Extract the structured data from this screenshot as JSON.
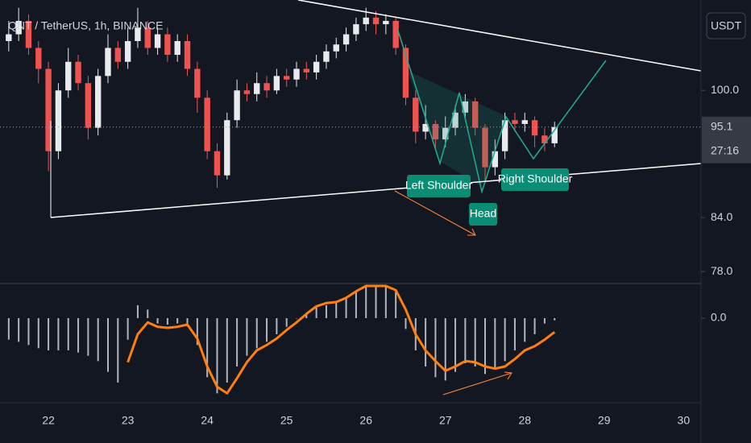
{
  "chart_data": {
    "type": "candlestick",
    "title": "QNT / TetherUS, 1h, BINANCE",
    "currency": "USDT",
    "log_scale": true,
    "up_color": "#e8eaed",
    "down_color": "#ef5350",
    "x": [
      21.5,
      21.625,
      21.75,
      21.875,
      22,
      22.125,
      22.25,
      22.375,
      22.5,
      22.625,
      22.75,
      22.875,
      23,
      23.125,
      23.25,
      23.375,
      23.5,
      23.625,
      23.75,
      23.875,
      24,
      24.125,
      24.25,
      24.375,
      24.5,
      24.625,
      24.75,
      24.875,
      25,
      25.125,
      25.25,
      25.375,
      25.5,
      25.625,
      25.75,
      25.875,
      26,
      26.125,
      26.25,
      26.375,
      26.5,
      26.625,
      26.75,
      26.875,
      27,
      27.125,
      27.25,
      27.375,
      27.5,
      27.625,
      27.75,
      27.875,
      28,
      28.125,
      28.25,
      28.375
    ],
    "open": [
      107,
      108,
      110,
      106,
      103,
      92,
      100,
      104,
      101,
      95,
      102,
      106,
      104,
      107,
      109,
      106,
      108,
      105,
      107,
      103,
      99,
      92,
      89,
      96,
      100,
      99.5,
      101,
      100,
      102,
      101.5,
      103,
      102.5,
      104,
      105.5,
      106.5,
      108,
      109.5,
      110.5,
      109.5,
      110,
      106,
      99,
      94.5,
      95.5,
      93.5,
      95,
      97,
      98.5,
      95,
      90,
      92,
      96,
      95.5,
      96,
      94,
      93
    ],
    "high": [
      110,
      112,
      111,
      107,
      104,
      101,
      106,
      105,
      102,
      103,
      108,
      107,
      109,
      112,
      110,
      109,
      109,
      108,
      108,
      104,
      100,
      93,
      97,
      101.5,
      101,
      102.5,
      102,
      103,
      103,
      104,
      104,
      105,
      106.5,
      107.5,
      109,
      110.5,
      112,
      111.5,
      111,
      110.5,
      106.5,
      100,
      98,
      96,
      96.5,
      98,
      99.5,
      99,
      95.5,
      93.5,
      97,
      97,
      97,
      96.5,
      95,
      95.8
    ],
    "low": [
      105.5,
      107,
      105,
      101,
      89.5,
      91,
      99,
      100,
      93.5,
      94,
      101,
      103,
      103,
      106,
      105,
      105,
      104,
      104,
      102,
      97,
      91,
      87.5,
      88.5,
      95,
      98.5,
      98.5,
      99,
      99.5,
      100.5,
      100.5,
      101.5,
      101.5,
      103,
      104.5,
      105.5,
      107,
      108.5,
      108,
      108,
      105,
      98,
      93,
      93.5,
      92,
      92.5,
      94,
      96,
      94,
      88,
      89,
      91,
      94.5,
      94.5,
      92.5,
      92,
      92.5
    ],
    "close": [
      108,
      110,
      106,
      103,
      92,
      100,
      104,
      101,
      95,
      102,
      106,
      104,
      107,
      109,
      106,
      108,
      105,
      107,
      103,
      99,
      92,
      89,
      96,
      100,
      99.5,
      101,
      100,
      102,
      101.5,
      103,
      102.5,
      104,
      105.5,
      106.5,
      108,
      109.5,
      110.5,
      109.5,
      110,
      106,
      99,
      94.5,
      95.5,
      93.5,
      95,
      97,
      98.5,
      95,
      90,
      92,
      96,
      95.5,
      96,
      94,
      93,
      95.1
    ],
    "xlim": [
      21.39,
      30.22
    ],
    "xticks": [
      22,
      23,
      24,
      25,
      26,
      27,
      28,
      29,
      30
    ],
    "ylim": [
      76.9,
      113.2
    ],
    "yticks": [
      {
        "value": 100,
        "label": "100.0"
      },
      {
        "value": 84,
        "label": "84.0"
      },
      {
        "value": 78,
        "label": "78.0"
      }
    ],
    "last_price": 95.1,
    "countdown": "27:16",
    "annotations": [
      "Left Shoulder",
      "Head",
      "Right Shoulder"
    ],
    "oscillator": {
      "ylim": [
        -0.75,
        0.3
      ],
      "yticks": [
        {
          "value": 0,
          "label": "0.0"
        }
      ],
      "histogram_color": "#b2b5be",
      "line_color": "#ff7f0e",
      "histogram": [
        -0.2,
        -0.22,
        -0.25,
        -0.28,
        -0.3,
        -0.3,
        -0.3,
        -0.32,
        -0.35,
        -0.4,
        -0.5,
        -0.6,
        -0.2,
        0.12,
        0.08,
        -0.05,
        -0.06,
        -0.05,
        -0.05,
        -0.25,
        -0.55,
        -0.7,
        -0.6,
        -0.45,
        -0.35,
        -0.28,
        -0.22,
        -0.15,
        -0.08,
        0.0,
        0.05,
        0.1,
        0.12,
        0.15,
        0.2,
        0.25,
        0.3,
        0.3,
        0.3,
        0.25,
        -0.1,
        -0.3,
        -0.45,
        -0.55,
        -0.58,
        -0.5,
        -0.42,
        -0.45,
        -0.52,
        -0.48,
        -0.4,
        -0.3,
        -0.22,
        -0.15,
        -0.05,
        -0.02
      ],
      "line": [
        null,
        null,
        null,
        null,
        null,
        null,
        null,
        null,
        null,
        null,
        null,
        null,
        -0.41,
        -0.15,
        -0.04,
        -0.08,
        -0.09,
        -0.08,
        -0.06,
        -0.19,
        -0.45,
        -0.64,
        -0.7,
        -0.56,
        -0.41,
        -0.3,
        -0.25,
        -0.19,
        -0.11,
        -0.04,
        0.04,
        0.11,
        0.14,
        0.15,
        0.19,
        0.25,
        0.3,
        0.3,
        0.3,
        0.26,
        0.08,
        -0.15,
        -0.3,
        -0.4,
        -0.49,
        -0.45,
        -0.4,
        -0.41,
        -0.45,
        -0.47,
        -0.45,
        -0.38,
        -0.3,
        -0.26,
        -0.2,
        -0.13
      ]
    }
  }
}
